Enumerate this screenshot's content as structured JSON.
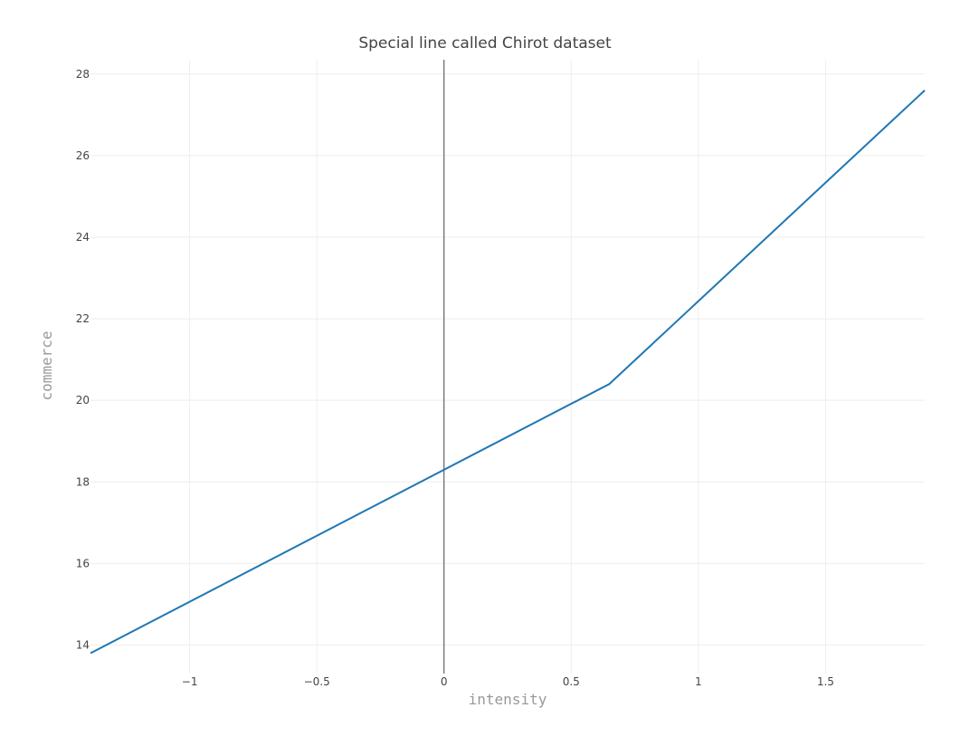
{
  "chart_data": {
    "type": "line",
    "title": "Special line called Chirot dataset",
    "xlabel": "intensity",
    "ylabel": "commerce",
    "xlim": [
      -1.39,
      1.89
    ],
    "ylim": [
      13.3,
      28.35
    ],
    "x_ticks": [
      -1,
      -0.5,
      0,
      0.5,
      1,
      1.5
    ],
    "x_tick_labels": [
      "−1",
      "−0.5",
      "0",
      "0.5",
      "1",
      "1.5"
    ],
    "y_ticks": [
      14,
      16,
      18,
      20,
      22,
      24,
      26,
      28
    ],
    "y_tick_labels": [
      "14",
      "16",
      "18",
      "20",
      "22",
      "24",
      "26",
      "28"
    ],
    "grid": true,
    "series": [
      {
        "color": "#1f77b4",
        "x": [
          -1.39,
          0.65,
          1.89
        ],
        "y": [
          13.8,
          20.4,
          27.6
        ]
      }
    ]
  }
}
